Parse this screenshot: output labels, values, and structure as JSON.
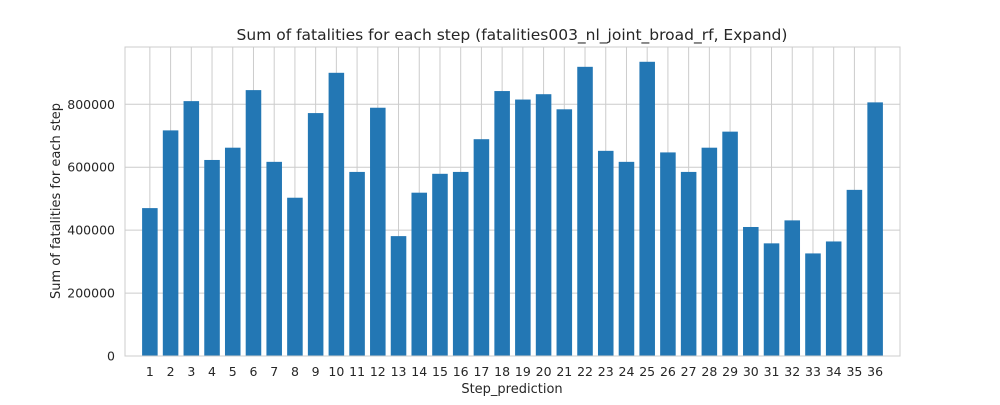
{
  "chart_data": {
    "type": "bar",
    "title": "Sum of fatalities for each step (fatalities003_nl_joint_broad_rf, Expand)",
    "xlabel": "Step_prediction",
    "ylabel": "Sum of fatalities for each step",
    "categories": [
      "1",
      "2",
      "3",
      "4",
      "5",
      "6",
      "7",
      "8",
      "9",
      "10",
      "11",
      "12",
      "13",
      "14",
      "15",
      "16",
      "17",
      "18",
      "19",
      "20",
      "21",
      "22",
      "23",
      "24",
      "25",
      "26",
      "27",
      "28",
      "29",
      "30",
      "31",
      "32",
      "33",
      "34",
      "35",
      "36"
    ],
    "values": [
      470000,
      717000,
      810000,
      623000,
      662000,
      845000,
      617000,
      503000,
      772000,
      900000,
      585000,
      789000,
      381000,
      519000,
      579000,
      585000,
      689000,
      842000,
      815000,
      832000,
      784000,
      919000,
      652000,
      617000,
      935000,
      647000,
      585000,
      662000,
      713000,
      410000,
      358000,
      431000,
      326000,
      364000,
      528000,
      806000
    ],
    "yticks": [
      0,
      200000,
      400000,
      600000,
      800000
    ],
    "ylim": [
      0,
      982000
    ],
    "grid": true,
    "bar_color": "#2377b4",
    "grid_color": "#cccccc",
    "frame_color": "#cccccc"
  }
}
